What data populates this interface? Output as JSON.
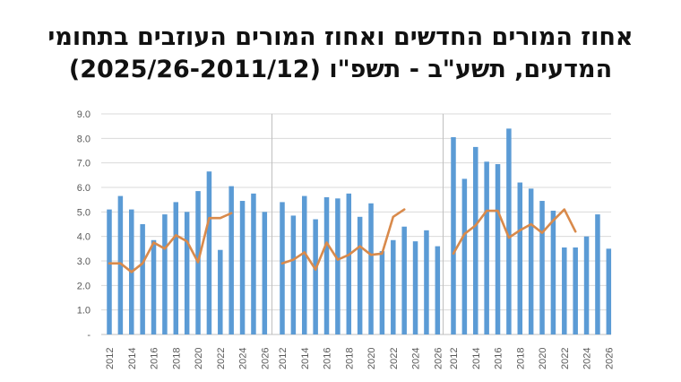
{
  "title_line1": "אחוז המורים החדשים ואחוז המורים העוזבים בתחומי",
  "title_line2": "המדעים, תשע\"ב - תשפ\"ו (2025/26-2011/12)",
  "colors": {
    "bars": "#5B9BD5",
    "line": "#D98A4B",
    "grid": "#d9d9d9",
    "axis": "#bfbfbf"
  },
  "chart_data": {
    "type": "bar",
    "ylim": [
      0,
      9
    ],
    "y_ticks": [
      "-",
      "1.0",
      "2.0",
      "3.0",
      "4.0",
      "5.0",
      "6.0",
      "7.0",
      "8.0",
      "9.0"
    ],
    "grid": true,
    "x_categories": [
      "2012",
      "2013",
      "2014",
      "2015",
      "2016",
      "2017",
      "2018",
      "2019",
      "2020",
      "2021",
      "2022",
      "2023",
      "2024",
      "2025",
      "2026"
    ],
    "x_tick_labels": [
      "2012",
      "2014",
      "2016",
      "2018",
      "2020",
      "2022",
      "2024",
      "2026"
    ],
    "panels": [
      {
        "bars": [
          5.1,
          5.65,
          5.1,
          4.5,
          3.85,
          4.9,
          5.4,
          5.0,
          5.85,
          6.65,
          3.45,
          6.05,
          5.45,
          5.75,
          5.0
        ],
        "line": [
          2.9,
          2.9,
          2.55,
          2.9,
          3.75,
          3.5,
          4.05,
          3.8,
          2.95,
          4.75,
          4.75,
          4.95,
          null,
          null,
          null
        ]
      },
      {
        "bars": [
          5.4,
          4.85,
          5.65,
          4.7,
          5.6,
          5.55,
          5.75,
          4.8,
          5.35,
          3.4,
          3.85,
          4.4,
          3.8,
          4.25,
          3.6
        ],
        "line": [
          2.9,
          3.05,
          3.35,
          2.65,
          3.75,
          3.05,
          3.25,
          3.6,
          3.25,
          3.3,
          4.8,
          5.1,
          null,
          null,
          null
        ]
      },
      {
        "bars": [
          8.05,
          6.35,
          7.65,
          7.05,
          6.95,
          8.4,
          6.2,
          5.95,
          5.45,
          5.05,
          3.55,
          3.55,
          4.0,
          4.9,
          3.5
        ],
        "line": [
          3.3,
          4.1,
          4.45,
          5.05,
          5.05,
          3.95,
          4.25,
          4.5,
          4.15,
          4.65,
          5.1,
          4.2,
          null,
          null,
          null
        ]
      }
    ]
  }
}
